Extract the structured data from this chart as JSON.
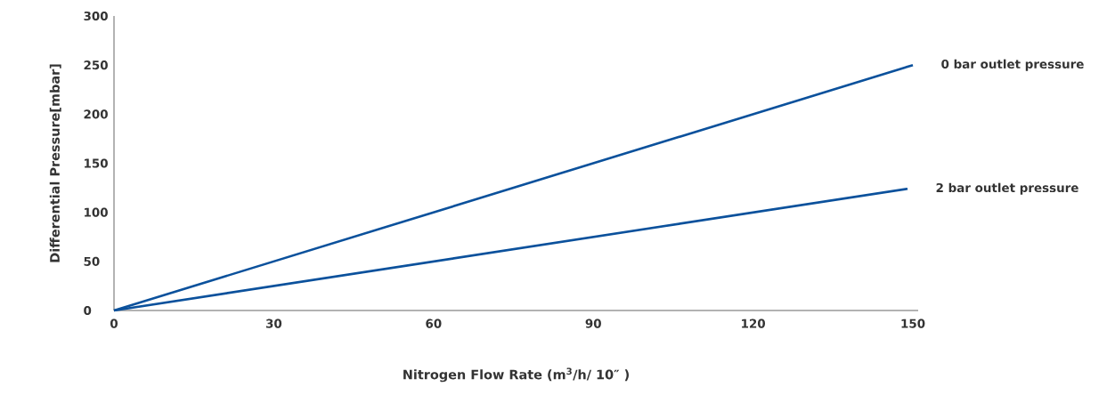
{
  "chart_data": {
    "type": "line",
    "xlabel": "Nitrogen Flow Rate (m$^{3}$/h/ 10″ )",
    "ylabel": "Differential Pressure[mbar]",
    "xlim": [
      0,
      151
    ],
    "ylim": [
      0,
      300
    ],
    "xticks": [
      0,
      30,
      60,
      90,
      120,
      150
    ],
    "yticks": [
      0,
      50,
      100,
      150,
      200,
      250,
      300
    ],
    "series": [
      {
        "name": "0 bar outlet pressure",
        "color": "#0b519c",
        "x": [
          0,
          150
        ],
        "values": [
          0,
          250
        ]
      },
      {
        "name": "2 bar outlet pressure",
        "color": "#0b519c",
        "x": [
          0,
          149
        ],
        "values": [
          0,
          124
        ]
      }
    ]
  }
}
